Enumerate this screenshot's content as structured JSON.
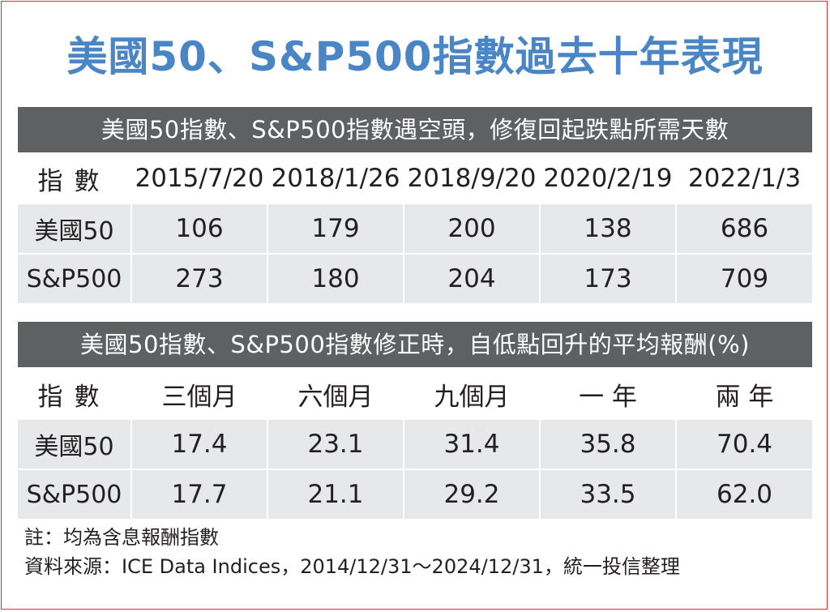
{
  "title": "美國50、S&P500指數過去十年表現",
  "section1": {
    "header": "美國50指數、S&P500指數遇空頭，修復回起跌點所需天數",
    "columns": [
      "指數",
      "2015/7/20",
      "2018/1/26",
      "2018/9/20",
      "2020/2/19",
      "2022/1/3"
    ],
    "rows": [
      {
        "label": "美國50",
        "values": [
          "106",
          "179",
          "200",
          "138",
          "686"
        ]
      },
      {
        "label": "S&P500",
        "values": [
          "273",
          "180",
          "204",
          "173",
          "709"
        ]
      }
    ]
  },
  "section2": {
    "header": "美國50指數、S&P500指數修正時，自低點回升的平均報酬(%)",
    "columns": [
      "指數",
      "三個月",
      "六個月",
      "九個月",
      "一 年",
      "兩 年"
    ],
    "rows": [
      {
        "label": "美國50",
        "values": [
          "17.4",
          "23.1",
          "31.4",
          "35.8",
          "70.4"
        ]
      },
      {
        "label": "S&P500",
        "values": [
          "17.7",
          "21.1",
          "29.2",
          "33.5",
          "62.0"
        ]
      }
    ]
  },
  "notes": {
    "note": "註：均為含息報酬指數",
    "source": "資料來源：ICE Data Indices，2014/12/31～2024/12/31，統一投信整理"
  },
  "colors": {
    "title": "#4a86c5",
    "header_bg": "#5f6062",
    "row_bg": "#e7e8e9",
    "frame": "#e0302a"
  }
}
